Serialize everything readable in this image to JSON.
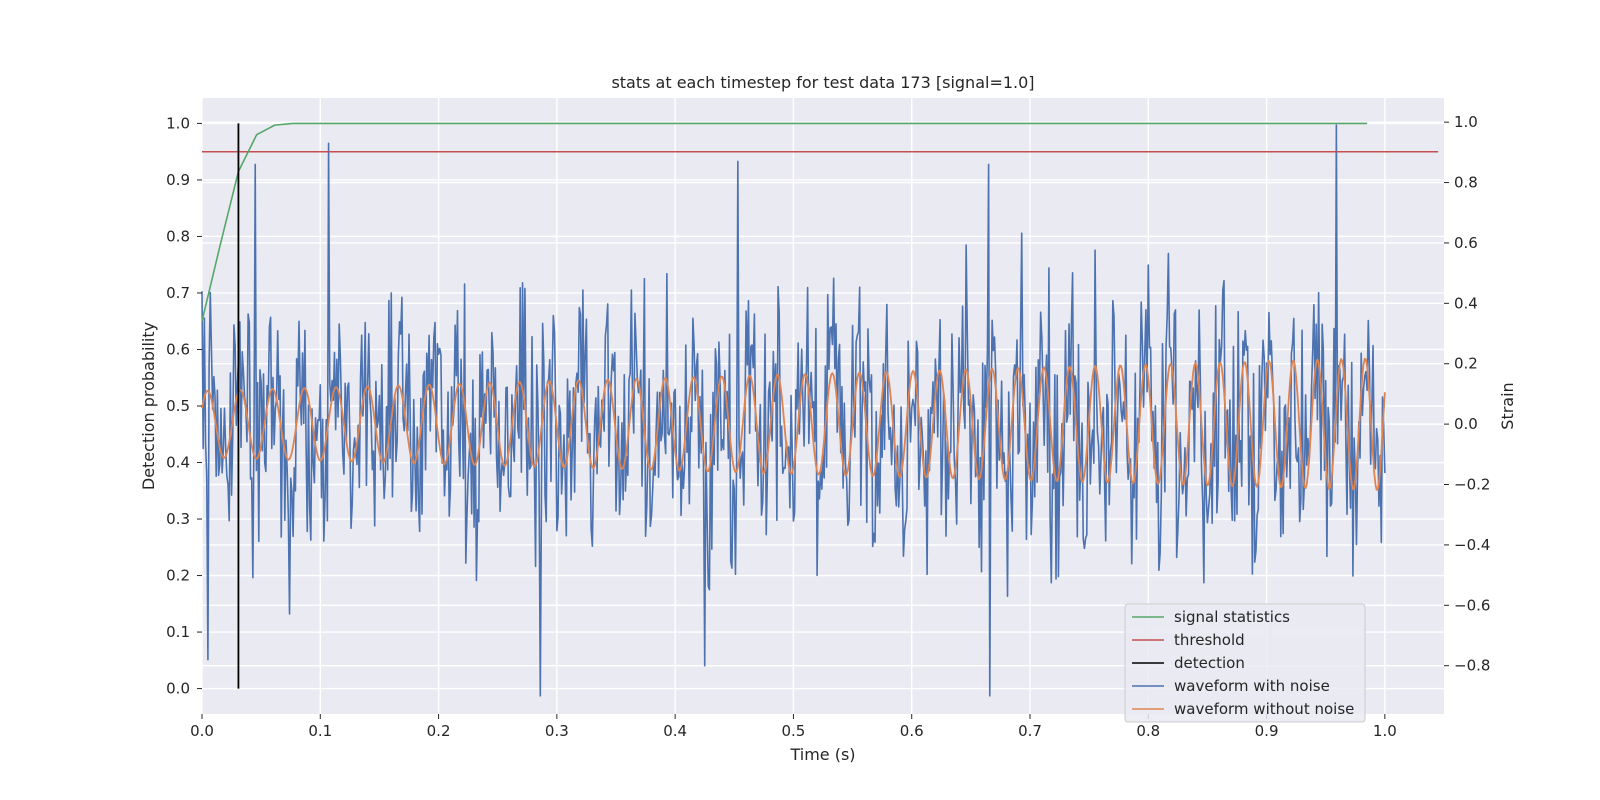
{
  "chart_data": {
    "type": "line",
    "title": "stats at each timestep for test data 173 [signal=1.0]",
    "xlabel": "Time (s)",
    "ylabel_left": "Detection probability",
    "ylabel_right": "Strain",
    "xlim": [
      0.0,
      1.05
    ],
    "ylim_left": [
      -0.045,
      1.045
    ],
    "ylim_right": [
      -0.96,
      1.08
    ],
    "x_ticks": [
      "0.0",
      "0.1",
      "0.2",
      "0.3",
      "0.4",
      "0.5",
      "0.6",
      "0.7",
      "0.8",
      "0.9",
      "1.0"
    ],
    "y_ticks_left": [
      "0.0",
      "0.1",
      "0.2",
      "0.3",
      "0.4",
      "0.5",
      "0.6",
      "0.7",
      "0.8",
      "0.9",
      "1.0"
    ],
    "y_ticks_right": [
      "−0.8",
      "−0.6",
      "−0.4",
      "−0.2",
      "0.0",
      "0.2",
      "0.4",
      "0.6",
      "0.8",
      "1.0"
    ],
    "grid": true,
    "legend_position": "lower-right",
    "series": [
      {
        "name": "signal statistics",
        "color": "#55a868",
        "axis": "left",
        "x": [
          0.0,
          0.0154,
          0.0308,
          0.0462,
          0.0615,
          0.0769,
          0.0923,
          0.2,
          0.4,
          0.6,
          0.8,
          0.985
        ],
        "y": [
          0.65,
          0.785,
          0.915,
          0.98,
          0.997,
          1.0,
          1.0,
          1.0,
          1.0,
          1.0,
          1.0,
          1.0
        ]
      },
      {
        "name": "threshold",
        "color": "#c44e52",
        "axis": "left",
        "x": [
          0.0,
          1.045
        ],
        "y": [
          0.95,
          0.95
        ]
      },
      {
        "name": "detection",
        "color": "#000000",
        "axis": "left",
        "x": [
          0.0308,
          0.0308
        ],
        "y": [
          0.0,
          1.0
        ]
      },
      {
        "name": "waveform with noise",
        "color": "#4c72b0",
        "axis": "right",
        "sample_count": 1000,
        "noise_amplitude": 0.29,
        "extrema": [
          {
            "x": 0.107,
            "y": 0.93
          },
          {
            "x": 0.045,
            "y": 0.86
          },
          {
            "x": 0.453,
            "y": 0.87
          },
          {
            "x": 0.665,
            "y": 0.86
          },
          {
            "x": 0.959,
            "y": 0.99
          },
          {
            "x": 0.286,
            "y": -0.9
          },
          {
            "x": 0.425,
            "y": -0.8
          },
          {
            "x": 0.666,
            "y": -0.9
          },
          {
            "x": 0.005,
            "y": -0.78
          }
        ]
      },
      {
        "name": "waveform without noise",
        "color": "#dd8452",
        "axis": "right",
        "sample_count": 1000,
        "amplitude_start": 0.11,
        "amplitude_end": 0.22,
        "frequency_start_hz": 36,
        "frequency_end_hz": 50,
        "phase": 0.5
      }
    ]
  }
}
